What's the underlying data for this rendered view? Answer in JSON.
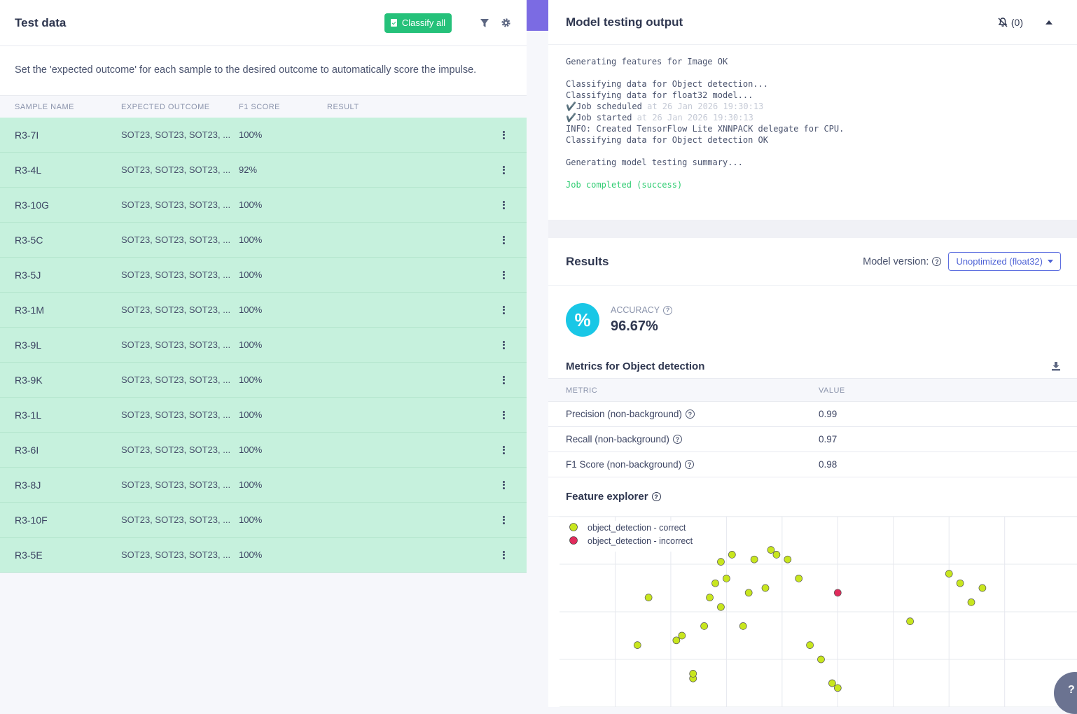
{
  "left": {
    "title": "Test data",
    "classify_all_label": "Classify all",
    "description": "Set the 'expected outcome' for each sample to the desired outcome to automatically score the impulse.",
    "columns": [
      "SAMPLE NAME",
      "EXPECTED OUTCOME",
      "F1 SCORE",
      "RESULT"
    ],
    "rows": [
      {
        "name": "R3-7I",
        "expected": "SOT23, SOT23, SOT23, ...",
        "f1": "100%"
      },
      {
        "name": "R3-4L",
        "expected": "SOT23, SOT23, SOT23, ...",
        "f1": "92%"
      },
      {
        "name": "R3-10G",
        "expected": "SOT23, SOT23, SOT23, ...",
        "f1": "100%"
      },
      {
        "name": "R3-5C",
        "expected": "SOT23, SOT23, SOT23, ...",
        "f1": "100%"
      },
      {
        "name": "R3-5J",
        "expected": "SOT23, SOT23, SOT23, ...",
        "f1": "100%"
      },
      {
        "name": "R3-1M",
        "expected": "SOT23, SOT23, SOT23, ...",
        "f1": "100%"
      },
      {
        "name": "R3-9L",
        "expected": "SOT23, SOT23, SOT23, ...",
        "f1": "100%"
      },
      {
        "name": "R3-9K",
        "expected": "SOT23, SOT23, SOT23, ...",
        "f1": "100%"
      },
      {
        "name": "R3-1L",
        "expected": "SOT23, SOT23, SOT23, ...",
        "f1": "100%"
      },
      {
        "name": "R3-6I",
        "expected": "SOT23, SOT23, SOT23, ...",
        "f1": "100%"
      },
      {
        "name": "R3-8J",
        "expected": "SOT23, SOT23, SOT23, ...",
        "f1": "100%"
      },
      {
        "name": "R3-10F",
        "expected": "SOT23, SOT23, SOT23, ...",
        "f1": "100%"
      },
      {
        "name": "R3-5E",
        "expected": "SOT23, SOT23, SOT23, ...",
        "f1": "100%"
      }
    ]
  },
  "output": {
    "title": "Model testing output",
    "notification_count": "(0)",
    "console_lines": [
      {
        "text": "Generating features for Image OK",
        "suffix": "",
        "style": ""
      },
      {
        "text": "",
        "suffix": "",
        "style": ""
      },
      {
        "text": "Classifying data for Object detection...",
        "suffix": "",
        "style": ""
      },
      {
        "text": "Classifying data for float32 model...",
        "suffix": "",
        "style": ""
      },
      {
        "text": "✔️Job scheduled",
        "suffix": " at 26 Jan 2026 19:30:13",
        "style": ""
      },
      {
        "text": "✔️Job started",
        "suffix": " at 26 Jan 2026 19:30:13",
        "style": ""
      },
      {
        "text": "INFO: Created TensorFlow Lite XNNPACK delegate for CPU.",
        "suffix": "",
        "style": ""
      },
      {
        "text": "Classifying data for Object detection OK",
        "suffix": "",
        "style": ""
      },
      {
        "text": "",
        "suffix": "",
        "style": ""
      },
      {
        "text": "Generating model testing summary...",
        "suffix": "",
        "style": ""
      },
      {
        "text": "",
        "suffix": "",
        "style": ""
      },
      {
        "text": "Job completed (success)",
        "suffix": "",
        "style": "ok"
      }
    ]
  },
  "results": {
    "title": "Results",
    "model_version_label": "Model version:",
    "model_version_value": "Unoptimized (float32)",
    "accuracy_label": "ACCURACY",
    "accuracy_symbol": "%",
    "accuracy_value": "96.67%",
    "metrics_title": "Metrics for Object detection",
    "metrics_columns": [
      "METRIC",
      "VALUE"
    ],
    "metrics": [
      {
        "name": "Precision (non-background)",
        "value": "0.99"
      },
      {
        "name": "Recall (non-background)",
        "value": "0.97"
      },
      {
        "name": "F1 Score (non-background)",
        "value": "0.98"
      }
    ],
    "feature_explorer_title": "Feature explorer"
  },
  "chart_data": {
    "type": "scatter",
    "title": "",
    "xlabel": "",
    "ylabel": "",
    "grid": true,
    "legend_position": "top-left",
    "series": [
      {
        "name": "object_detection - correct",
        "color": "#c8e61e",
        "points": [
          [
            -2.6,
            -1.7
          ],
          [
            -2.4,
            -0.7
          ],
          [
            -1.9,
            -1.6
          ],
          [
            -1.8,
            -1.5
          ],
          [
            -1.6,
            -2.4
          ],
          [
            -1.6,
            -2.3
          ],
          [
            -1.4,
            -1.3
          ],
          [
            -1.3,
            -0.7
          ],
          [
            -1.2,
            -0.4
          ],
          [
            -1.1,
            -0.9
          ],
          [
            -1.1,
            0.05
          ],
          [
            -1.0,
            -0.3
          ],
          [
            -0.9,
            0.2
          ],
          [
            -0.7,
            -1.3
          ],
          [
            -0.6,
            -0.6
          ],
          [
            -0.5,
            0.1
          ],
          [
            -0.3,
            -0.5
          ],
          [
            -0.2,
            0.3
          ],
          [
            -0.1,
            0.2
          ],
          [
            0.1,
            0.1
          ],
          [
            0.3,
            -0.3
          ],
          [
            0.5,
            -1.7
          ],
          [
            0.7,
            -2.0
          ],
          [
            0.9,
            -2.5
          ],
          [
            1.0,
            -2.6
          ],
          [
            2.3,
            -1.2
          ],
          [
            3.0,
            -0.2
          ],
          [
            3.2,
            -0.4
          ],
          [
            3.4,
            -0.8
          ],
          [
            3.6,
            -0.5
          ]
        ]
      },
      {
        "name": "object_detection - incorrect",
        "color": "#e02b5c",
        "points": [
          [
            1.0,
            -0.6
          ]
        ]
      }
    ]
  }
}
